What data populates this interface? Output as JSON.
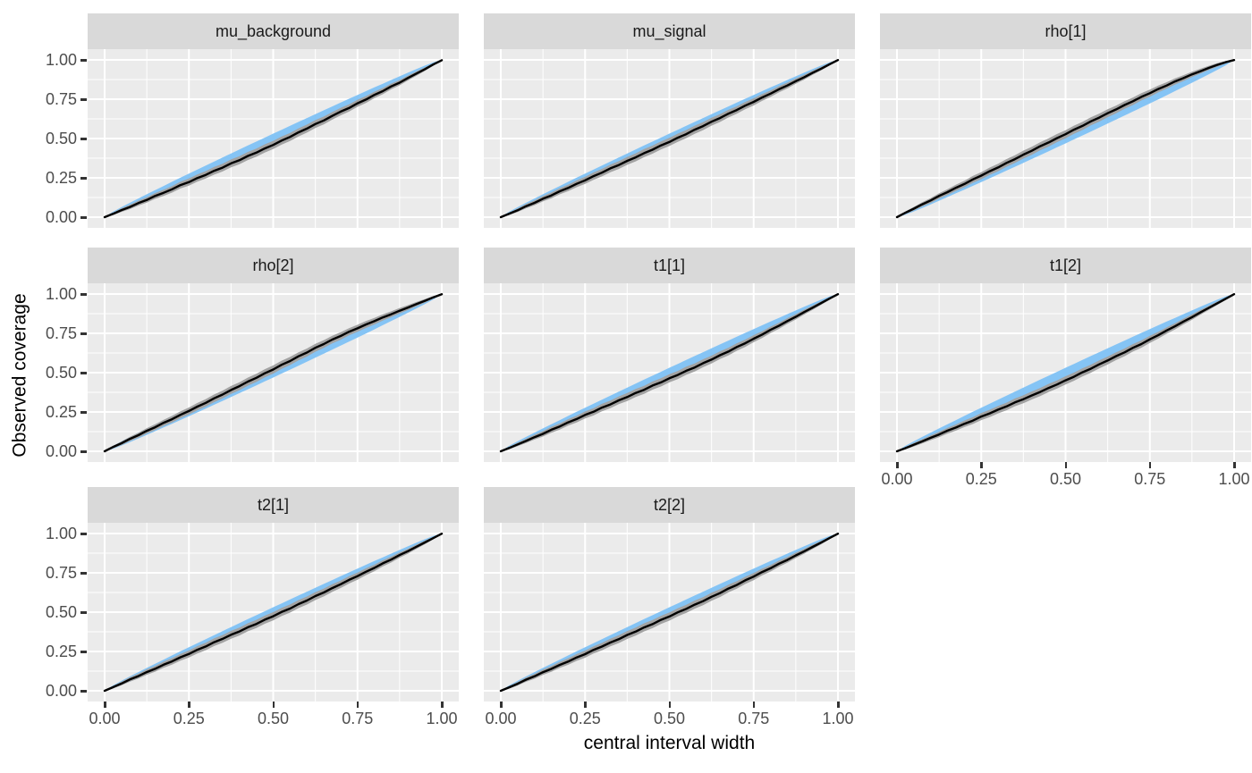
{
  "figure": {
    "x_axis_title": "central interval width",
    "y_axis_title": "Observed coverage"
  },
  "chart_data": {
    "type": "line",
    "title": "",
    "xlabel": "central interval width",
    "ylabel": "Observed coverage",
    "facet_layout": [
      [
        "mu_background",
        "mu_signal",
        "rho[1]"
      ],
      [
        "rho[2]",
        "t1[1]",
        "t1[2]"
      ],
      [
        "t2[1]",
        "t2[2]",
        null
      ]
    ],
    "xlim": [
      0,
      1
    ],
    "ylim": [
      0,
      1
    ],
    "x_ticks": [
      0,
      0.25,
      0.5,
      0.75,
      1
    ],
    "x_tick_labels": [
      "0.00",
      "0.25",
      "0.50",
      "0.75",
      "1.00"
    ],
    "y_ticks": [
      0,
      0.25,
      0.5,
      0.75,
      1
    ],
    "y_tick_labels": [
      "0.00",
      "0.25",
      "0.50",
      "0.75",
      "1.00"
    ],
    "x_minor_ticks": [
      0.125,
      0.375,
      0.625,
      0.875
    ],
    "y_minor_ticks": [
      0.125,
      0.375,
      0.625,
      0.875
    ],
    "grid": true,
    "legend": "none",
    "colors": {
      "nominal_band": "#85C4F5",
      "observed_band": "#A3A3A3",
      "observed_line": "#000000",
      "panel_background": "#EBEBEB",
      "gridline": "#FFFFFF",
      "strip_background": "#D9D9D9",
      "strip_text": "#1A1A1A",
      "axis_text": "#4D4D4D",
      "tick_mark": "#333333"
    },
    "nominal_band": {
      "description": "expected coverage band centered on y = x",
      "halfwidth_k": 0.062
    },
    "observed_band": {
      "description": "uncertainty band centered on observed coverage line",
      "halfwidth_k": 0.052
    },
    "x": [
      0,
      0.025,
      0.05,
      0.075,
      0.1,
      0.125,
      0.15,
      0.175,
      0.2,
      0.225,
      0.25,
      0.275,
      0.3,
      0.325,
      0.35,
      0.375,
      0.4,
      0.425,
      0.45,
      0.475,
      0.5,
      0.525,
      0.55,
      0.575,
      0.6,
      0.625,
      0.65,
      0.675,
      0.7,
      0.725,
      0.75,
      0.775,
      0.8,
      0.825,
      0.85,
      0.875,
      0.9,
      0.925,
      0.95,
      0.975,
      1
    ],
    "panels": [
      {
        "label": "mu_background",
        "observed": [
          0.0,
          0.021,
          0.045,
          0.065,
          0.089,
          0.109,
          0.135,
          0.155,
          0.177,
          0.204,
          0.223,
          0.249,
          0.269,
          0.295,
          0.315,
          0.342,
          0.362,
          0.389,
          0.41,
          0.437,
          0.459,
          0.487,
          0.51,
          0.539,
          0.563,
          0.592,
          0.615,
          0.644,
          0.671,
          0.694,
          0.724,
          0.748,
          0.777,
          0.801,
          0.831,
          0.855,
          0.885,
          0.913,
          0.941,
          0.971,
          0.998
        ]
      },
      {
        "label": "mu_signal",
        "observed": [
          0.0,
          0.022,
          0.044,
          0.07,
          0.091,
          0.117,
          0.138,
          0.165,
          0.186,
          0.212,
          0.234,
          0.261,
          0.283,
          0.31,
          0.331,
          0.358,
          0.38,
          0.407,
          0.429,
          0.456,
          0.478,
          0.505,
          0.528,
          0.556,
          0.579,
          0.607,
          0.63,
          0.658,
          0.681,
          0.709,
          0.733,
          0.761,
          0.785,
          0.813,
          0.837,
          0.865,
          0.89,
          0.918,
          0.944,
          0.972,
          0.999
        ]
      },
      {
        "label": "rho[1]",
        "observed": [
          0.0,
          0.028,
          0.054,
          0.082,
          0.106,
          0.135,
          0.159,
          0.187,
          0.211,
          0.24,
          0.264,
          0.292,
          0.316,
          0.345,
          0.369,
          0.398,
          0.422,
          0.451,
          0.475,
          0.503,
          0.527,
          0.556,
          0.58,
          0.609,
          0.633,
          0.661,
          0.685,
          0.713,
          0.737,
          0.765,
          0.788,
          0.815,
          0.837,
          0.863,
          0.884,
          0.908,
          0.928,
          0.949,
          0.968,
          0.985,
          0.999
        ]
      },
      {
        "label": "rho[2]",
        "observed": [
          0.0,
          0.027,
          0.051,
          0.079,
          0.102,
          0.13,
          0.153,
          0.181,
          0.204,
          0.232,
          0.256,
          0.284,
          0.308,
          0.337,
          0.361,
          0.39,
          0.414,
          0.443,
          0.467,
          0.496,
          0.52,
          0.55,
          0.574,
          0.604,
          0.628,
          0.658,
          0.682,
          0.71,
          0.733,
          0.76,
          0.782,
          0.806,
          0.827,
          0.851,
          0.871,
          0.894,
          0.914,
          0.936,
          0.957,
          0.979,
          0.999
        ]
      },
      {
        "label": "t1[1]",
        "observed": [
          0.0,
          0.021,
          0.044,
          0.066,
          0.09,
          0.111,
          0.137,
          0.158,
          0.184,
          0.205,
          0.231,
          0.251,
          0.278,
          0.298,
          0.324,
          0.345,
          0.371,
          0.391,
          0.418,
          0.438,
          0.464,
          0.485,
          0.512,
          0.533,
          0.56,
          0.583,
          0.611,
          0.634,
          0.663,
          0.687,
          0.716,
          0.742,
          0.772,
          0.798,
          0.828,
          0.855,
          0.885,
          0.913,
          0.942,
          0.971,
          0.999
        ]
      },
      {
        "label": "t1[2]",
        "observed": [
          0.0,
          0.02,
          0.042,
          0.063,
          0.086,
          0.107,
          0.131,
          0.151,
          0.175,
          0.195,
          0.221,
          0.241,
          0.265,
          0.285,
          0.311,
          0.331,
          0.355,
          0.377,
          0.403,
          0.425,
          0.451,
          0.474,
          0.502,
          0.525,
          0.553,
          0.577,
          0.605,
          0.629,
          0.658,
          0.682,
          0.712,
          0.738,
          0.768,
          0.795,
          0.825,
          0.853,
          0.883,
          0.912,
          0.941,
          0.97,
          0.999
        ]
      },
      {
        "label": "t2[1]",
        "observed": [
          0.0,
          0.023,
          0.046,
          0.072,
          0.093,
          0.119,
          0.14,
          0.166,
          0.187,
          0.213,
          0.234,
          0.261,
          0.282,
          0.309,
          0.33,
          0.356,
          0.377,
          0.404,
          0.425,
          0.452,
          0.474,
          0.501,
          0.523,
          0.551,
          0.574,
          0.602,
          0.625,
          0.653,
          0.677,
          0.705,
          0.729,
          0.757,
          0.781,
          0.81,
          0.834,
          0.863,
          0.888,
          0.916,
          0.943,
          0.971,
          0.999
        ]
      },
      {
        "label": "t2[2]",
        "observed": [
          0.0,
          0.022,
          0.045,
          0.071,
          0.092,
          0.118,
          0.139,
          0.165,
          0.186,
          0.212,
          0.233,
          0.26,
          0.281,
          0.307,
          0.328,
          0.355,
          0.376,
          0.403,
          0.424,
          0.451,
          0.472,
          0.499,
          0.521,
          0.548,
          0.57,
          0.598,
          0.621,
          0.65,
          0.673,
          0.702,
          0.726,
          0.755,
          0.779,
          0.808,
          0.832,
          0.861,
          0.887,
          0.915,
          0.942,
          0.971,
          0.999
        ]
      }
    ]
  }
}
